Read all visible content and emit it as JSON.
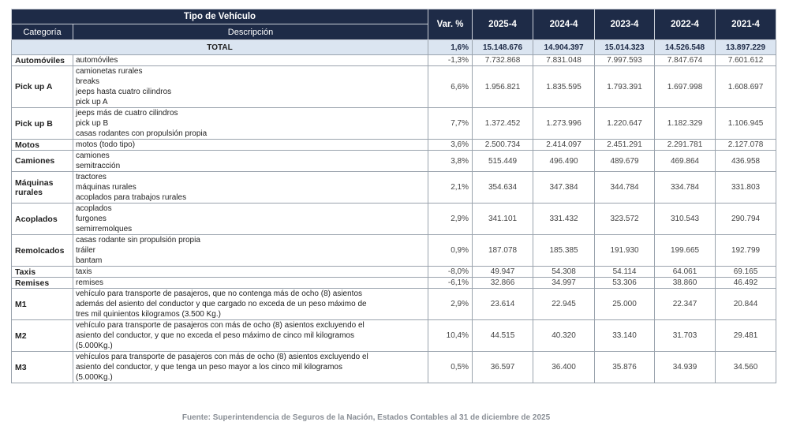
{
  "table": {
    "header": {
      "group": "Tipo de Vehículo",
      "category": "Categoría",
      "description": "Descripción",
      "columns": [
        "Var. %",
        "2025-4",
        "2024-4",
        "2023-4",
        "2022-4",
        "2021-4"
      ]
    },
    "total": {
      "label": "TOTAL",
      "values": [
        "1,6%",
        "15.148.676",
        "14.904.397",
        "15.014.323",
        "14.526.548",
        "13.897.229"
      ]
    },
    "rows": [
      {
        "category": "Automóviles",
        "description": [
          "automóviles"
        ],
        "values": [
          "-1,3%",
          "7.732.868",
          "7.831.048",
          "7.997.593",
          "7.847.674",
          "7.601.612"
        ]
      },
      {
        "category": "Pick up A",
        "description": [
          "camionetas rurales",
          "breaks",
          "jeeps hasta cuatro cilindros",
          "pick up A"
        ],
        "values": [
          "6,6%",
          "1.956.821",
          "1.835.595",
          "1.793.391",
          "1.697.998",
          "1.608.697"
        ]
      },
      {
        "category": "Pick up B",
        "description": [
          "jeeps más de cuatro cilindros",
          "pick up B",
          "casas rodantes con propulsión propia"
        ],
        "values": [
          "7,7%",
          "1.372.452",
          "1.273.996",
          "1.220.647",
          "1.182.329",
          "1.106.945"
        ]
      },
      {
        "category": "Motos",
        "description": [
          "motos (todo tipo)"
        ],
        "values": [
          "3,6%",
          "2.500.734",
          "2.414.097",
          "2.451.291",
          "2.291.781",
          "2.127.078"
        ]
      },
      {
        "category": "Camiones",
        "description": [
          "camiones",
          "semitracción"
        ],
        "values": [
          "3,8%",
          "515.449",
          "496.490",
          "489.679",
          "469.864",
          "436.958"
        ]
      },
      {
        "category": "Máquinas rurales",
        "description": [
          "tractores",
          "máquinas rurales",
          "acoplados para trabajos rurales"
        ],
        "values": [
          "2,1%",
          "354.634",
          "347.384",
          "344.784",
          "334.784",
          "331.803"
        ]
      },
      {
        "category": "Acoplados",
        "description": [
          "acoplados",
          "furgones",
          "semirremolques"
        ],
        "values": [
          "2,9%",
          "341.101",
          "331.432",
          "323.572",
          "310.543",
          "290.794"
        ]
      },
      {
        "category": "Remolcados",
        "description": [
          "casas rodante sin propulsión propia",
          "tráiler",
          "bantam"
        ],
        "values": [
          "0,9%",
          "187.078",
          "185.385",
          "191.930",
          "199.665",
          "192.799"
        ]
      },
      {
        "category": "Taxis",
        "description": [
          "taxis"
        ],
        "values": [
          "-8,0%",
          "49.947",
          "54.308",
          "54.114",
          "64.061",
          "69.165"
        ]
      },
      {
        "category": "Remises",
        "description": [
          "remises"
        ],
        "values": [
          "-6,1%",
          "32.866",
          "34.997",
          "53.306",
          "38.860",
          "46.492"
        ]
      },
      {
        "category": "M1",
        "description": [
          "vehículo para transporte de pasajeros, que no contenga más de ocho (8) asientos",
          "además del asiento del conductor y que cargado no exceda de un peso máximo de",
          "tres mil quinientos kilogramos (3.500 Kg.)"
        ],
        "values": [
          "2,9%",
          "23.614",
          "22.945",
          "25.000",
          "22.347",
          "20.844"
        ]
      },
      {
        "category": "M2",
        "description": [
          "vehículo para transporte de pasajeros con más de ocho (8) asientos excluyendo el",
          "asiento del conductor, y que no exceda el peso máximo de cinco mil kilogramos",
          "(5.000Kg.)"
        ],
        "values": [
          "10,4%",
          "44.515",
          "40.320",
          "33.140",
          "31.703",
          "29.481"
        ]
      },
      {
        "category": "M3",
        "description": [
          "vehículos para transporte de pasajeros con más de ocho (8) asientos excluyendo el",
          "asiento del conductor, y que tenga un peso mayor a los cinco mil kilogramos",
          "(5.000Kg.)"
        ],
        "values": [
          "0,5%",
          "36.597",
          "36.400",
          "35.876",
          "34.939",
          "34.560"
        ]
      }
    ]
  },
  "source": "Fuente: Superintendencia de Seguros de la Nación, Estados Contables al 31 de diciembre de 2025"
}
